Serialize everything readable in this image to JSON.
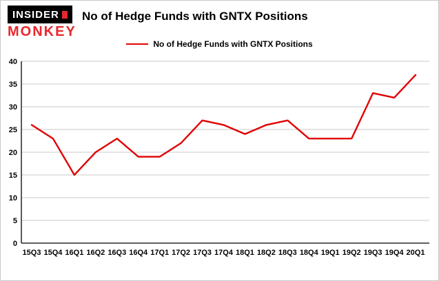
{
  "logo": {
    "line1": "INSIDER",
    "line2": "MONKEY"
  },
  "header": {
    "title": "No of Hedge Funds with GNTX Positions"
  },
  "legend": {
    "label": "No of Hedge Funds with GNTX Positions"
  },
  "colors": {
    "line": "#e00000",
    "grid": "#c9c9c9",
    "axis": "#000000",
    "logo_red": "#e8262d",
    "text": "#000000"
  },
  "chart_data": {
    "type": "line",
    "title": "No of Hedge Funds with GNTX Positions",
    "categories": [
      "15Q3",
      "15Q4",
      "16Q1",
      "16Q2",
      "16Q3",
      "16Q4",
      "17Q1",
      "17Q2",
      "17Q3",
      "17Q4",
      "18Q1",
      "18Q2",
      "18Q3",
      "18Q4",
      "19Q1",
      "19Q2",
      "19Q3",
      "19Q4",
      "20Q1"
    ],
    "series": [
      {
        "name": "No of Hedge Funds with GNTX Positions",
        "color": "#e00000",
        "values": [
          26,
          23,
          15,
          20,
          23,
          19,
          19,
          22,
          27,
          26,
          24,
          26,
          27,
          23,
          23,
          23,
          33,
          32,
          37
        ]
      }
    ],
    "xlabel": "",
    "ylabel": "",
    "ylim": [
      0,
      40
    ],
    "yticks": [
      0,
      5,
      10,
      15,
      20,
      25,
      30,
      35,
      40
    ],
    "grid": true,
    "legend_position": "top"
  }
}
